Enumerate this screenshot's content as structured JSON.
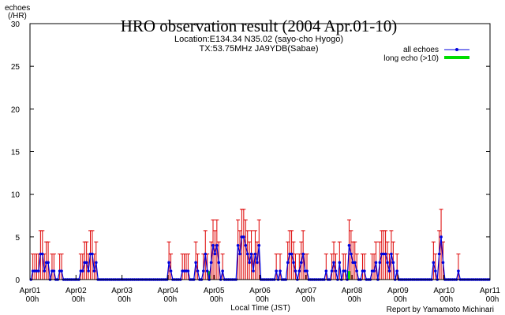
{
  "chart_data": {
    "type": "line",
    "title": "HRO observation result (2004 Apr.01-10)",
    "subtitle_lines": [
      "Location:E134.34 N35.02 (sayo-cho Hyogo)",
      "TX:53.75MHz JA9YDB(Sabae)"
    ],
    "ylabel_lines": [
      "echoes",
      "(/HR)"
    ],
    "xlabel": "Local Time (JST)",
    "credit": "Report by Yamamoto Michinari",
    "ylim": [
      0,
      30
    ],
    "y_ticks": [
      "0",
      "5",
      "10",
      "15",
      "20",
      "25",
      "30"
    ],
    "xlim_hours": [
      0,
      240
    ],
    "x_ticks": [
      {
        "day": "Apr01",
        "hour": "00h"
      },
      {
        "day": "Apr02",
        "hour": "00h"
      },
      {
        "day": "Apr03",
        "hour": "00h"
      },
      {
        "day": "Apr04",
        "hour": "00h"
      },
      {
        "day": "Apr05",
        "hour": "00h"
      },
      {
        "day": "Apr06",
        "hour": "00h"
      },
      {
        "day": "Apr07",
        "hour": "00h"
      },
      {
        "day": "Apr08",
        "hour": "00h"
      },
      {
        "day": "Apr09",
        "hour": "00h"
      },
      {
        "day": "Apr10",
        "hour": "00h"
      },
      {
        "day": "Apr11",
        "hour": "00h"
      }
    ],
    "grid": false,
    "legend_position": "top-right",
    "series": [
      {
        "name": "all echoes",
        "color": "#0000dd",
        "errorbar_color": "#dd0000",
        "values": [
          0,
          1,
          1,
          1,
          1,
          3,
          3,
          1,
          2,
          2,
          0,
          1,
          1,
          0,
          0,
          1,
          1,
          0,
          0,
          0,
          0,
          0,
          0,
          0,
          0,
          0,
          1,
          1,
          2,
          2,
          1,
          3,
          3,
          1,
          2,
          0,
          0,
          0,
          0,
          0,
          0,
          0,
          0,
          0,
          0,
          0,
          0,
          0,
          0,
          0,
          0,
          0,
          0,
          0,
          0,
          0,
          0,
          0,
          0,
          0,
          0,
          0,
          0,
          0,
          0,
          0,
          0,
          0,
          0,
          0,
          0,
          0,
          2,
          1,
          0,
          0,
          0,
          0,
          0,
          1,
          1,
          1,
          1,
          0,
          0,
          0,
          2,
          1,
          0,
          0,
          1,
          3,
          1,
          0,
          2,
          4,
          3,
          4,
          2,
          0,
          1,
          0,
          0,
          0,
          0,
          0,
          0,
          0,
          4,
          3,
          5,
          5,
          4,
          3,
          2,
          3,
          1,
          3,
          2,
          4,
          0,
          0,
          0,
          0,
          0,
          0,
          0,
          0,
          1,
          0,
          1,
          0,
          0,
          0,
          2,
          3,
          3,
          2,
          1,
          0,
          1,
          2,
          3,
          1,
          1,
          0,
          0,
          0,
          0,
          0,
          0,
          0,
          0,
          0,
          1,
          0,
          0,
          1,
          2,
          1,
          0,
          2,
          0,
          1,
          1,
          0,
          4,
          3,
          2,
          2,
          1,
          0,
          0,
          1,
          1,
          0,
          0,
          0,
          1,
          1,
          2,
          0,
          2,
          3,
          3,
          3,
          2,
          1,
          3,
          2,
          0,
          1,
          0,
          0,
          0,
          0,
          0,
          0,
          0,
          0,
          0,
          0,
          0,
          0,
          0,
          0,
          0,
          0,
          0,
          0,
          2,
          1,
          0,
          3,
          5,
          2,
          0,
          0,
          0,
          0,
          0,
          0,
          0,
          1,
          0,
          0,
          0,
          0,
          0,
          0,
          0,
          0,
          0,
          0,
          0,
          0,
          0,
          0,
          0,
          0
        ]
      },
      {
        "name": "long echo (>10)",
        "color": "#00dd00",
        "values": [
          0,
          0,
          0,
          0,
          0,
          0,
          0,
          0,
          0,
          0,
          0,
          0,
          0,
          0,
          0,
          0,
          0,
          0,
          0,
          0,
          0,
          0,
          0,
          0,
          0,
          0,
          0,
          0,
          0,
          0,
          0,
          0,
          0,
          0,
          0,
          0,
          0,
          0,
          0,
          0,
          0,
          0,
          0,
          0,
          0,
          0,
          0,
          0,
          0,
          0,
          0,
          0,
          0,
          0,
          0,
          0,
          0,
          0,
          0,
          0,
          0,
          0,
          0,
          0,
          0,
          0,
          0,
          0,
          0,
          0,
          0,
          0,
          0,
          0,
          0,
          0,
          0,
          0,
          0,
          0,
          0,
          0,
          0,
          0,
          0,
          0,
          0,
          0,
          0,
          0,
          0,
          0,
          0,
          1,
          0,
          0,
          0,
          0,
          0,
          0,
          0,
          0,
          0,
          0,
          0,
          0,
          0,
          0,
          0,
          0,
          0,
          0,
          0,
          0,
          0,
          0,
          0,
          0,
          0,
          0,
          0,
          0,
          0,
          0,
          0,
          0,
          0,
          0,
          0,
          0,
          0,
          0,
          0,
          0,
          0,
          0,
          0,
          0,
          0,
          0,
          0,
          0,
          0,
          0,
          0,
          0,
          0,
          0,
          0,
          0,
          0,
          0,
          0,
          0,
          0,
          0,
          0,
          0,
          0,
          0,
          0,
          0,
          0,
          0,
          0,
          0,
          1,
          0,
          0,
          0,
          0,
          0,
          0,
          0,
          0,
          0,
          0,
          0,
          0,
          0,
          0,
          0,
          0,
          0,
          0,
          0,
          0,
          0,
          0,
          0,
          0,
          0,
          0,
          0,
          0,
          0,
          0,
          0,
          0,
          0,
          0,
          0,
          0,
          0,
          0,
          0,
          0,
          0,
          0,
          0,
          0,
          0,
          0,
          0,
          0,
          0,
          0,
          0,
          0,
          0,
          0,
          0,
          0,
          0,
          0,
          0,
          0,
          0,
          0,
          0,
          0,
          0,
          0,
          0,
          0,
          0,
          0,
          0,
          0,
          0
        ]
      }
    ]
  }
}
